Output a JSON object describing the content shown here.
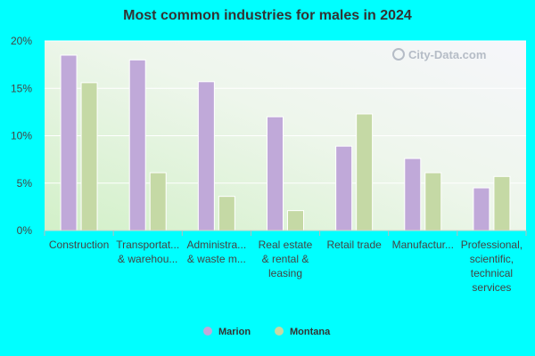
{
  "chart_data": {
    "type": "bar",
    "title": "Most common industries for males in 2024",
    "categories": [
      [
        "Construction"
      ],
      [
        "Transportat...",
        "& warehou..."
      ],
      [
        "Administra...",
        "& waste m..."
      ],
      [
        "Real estate",
        "& rental &",
        "leasing"
      ],
      [
        "Retail trade"
      ],
      [
        "Manufactur..."
      ],
      [
        "Professional,",
        "scientific,",
        "technical",
        "services"
      ]
    ],
    "series": [
      {
        "name": "Marion",
        "color": "#c0a9d9",
        "values": [
          18.5,
          18.0,
          15.7,
          12.0,
          8.9,
          7.6,
          4.5
        ]
      },
      {
        "name": "Montana",
        "color": "#c5d9a5",
        "values": [
          15.6,
          6.1,
          3.6,
          2.1,
          12.3,
          6.1,
          5.7
        ]
      }
    ],
    "yticks": [
      "0%",
      "5%",
      "10%",
      "15%",
      "20%"
    ],
    "ylim": [
      0,
      20
    ],
    "xlabel": "",
    "ylabel": "",
    "grid": true,
    "legend": "bottom-center",
    "watermark": "City-Data.com",
    "plot_background": "#e6f5df"
  }
}
